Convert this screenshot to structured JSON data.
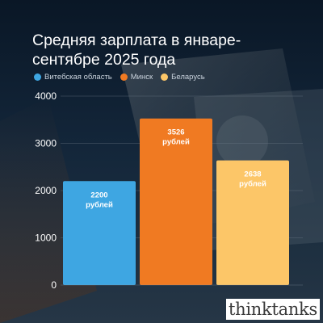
{
  "chart_data": {
    "type": "bar",
    "title": "Средняя зарплата в январе-сентябре 2025 года",
    "categories": [
      "Витебская область",
      "Минск",
      "Беларусь"
    ],
    "values": [
      2200,
      3526,
      2638
    ],
    "data_labels": [
      {
        "value": "2200",
        "unit": "рублей"
      },
      {
        "value": "3526",
        "unit": "рублей"
      },
      {
        "value": "2638",
        "unit": "рублей"
      }
    ],
    "colors": [
      "#3ea6e2",
      "#f07a22",
      "#fcc668"
    ],
    "ylim": [
      0,
      4000
    ],
    "yticks": [
      "0",
      "1000",
      "2000",
      "3000",
      "4000"
    ],
    "xlabel": "",
    "ylabel": "",
    "grid": true,
    "legend": "top-left"
  },
  "logo": {
    "text": "thinktanks"
  }
}
